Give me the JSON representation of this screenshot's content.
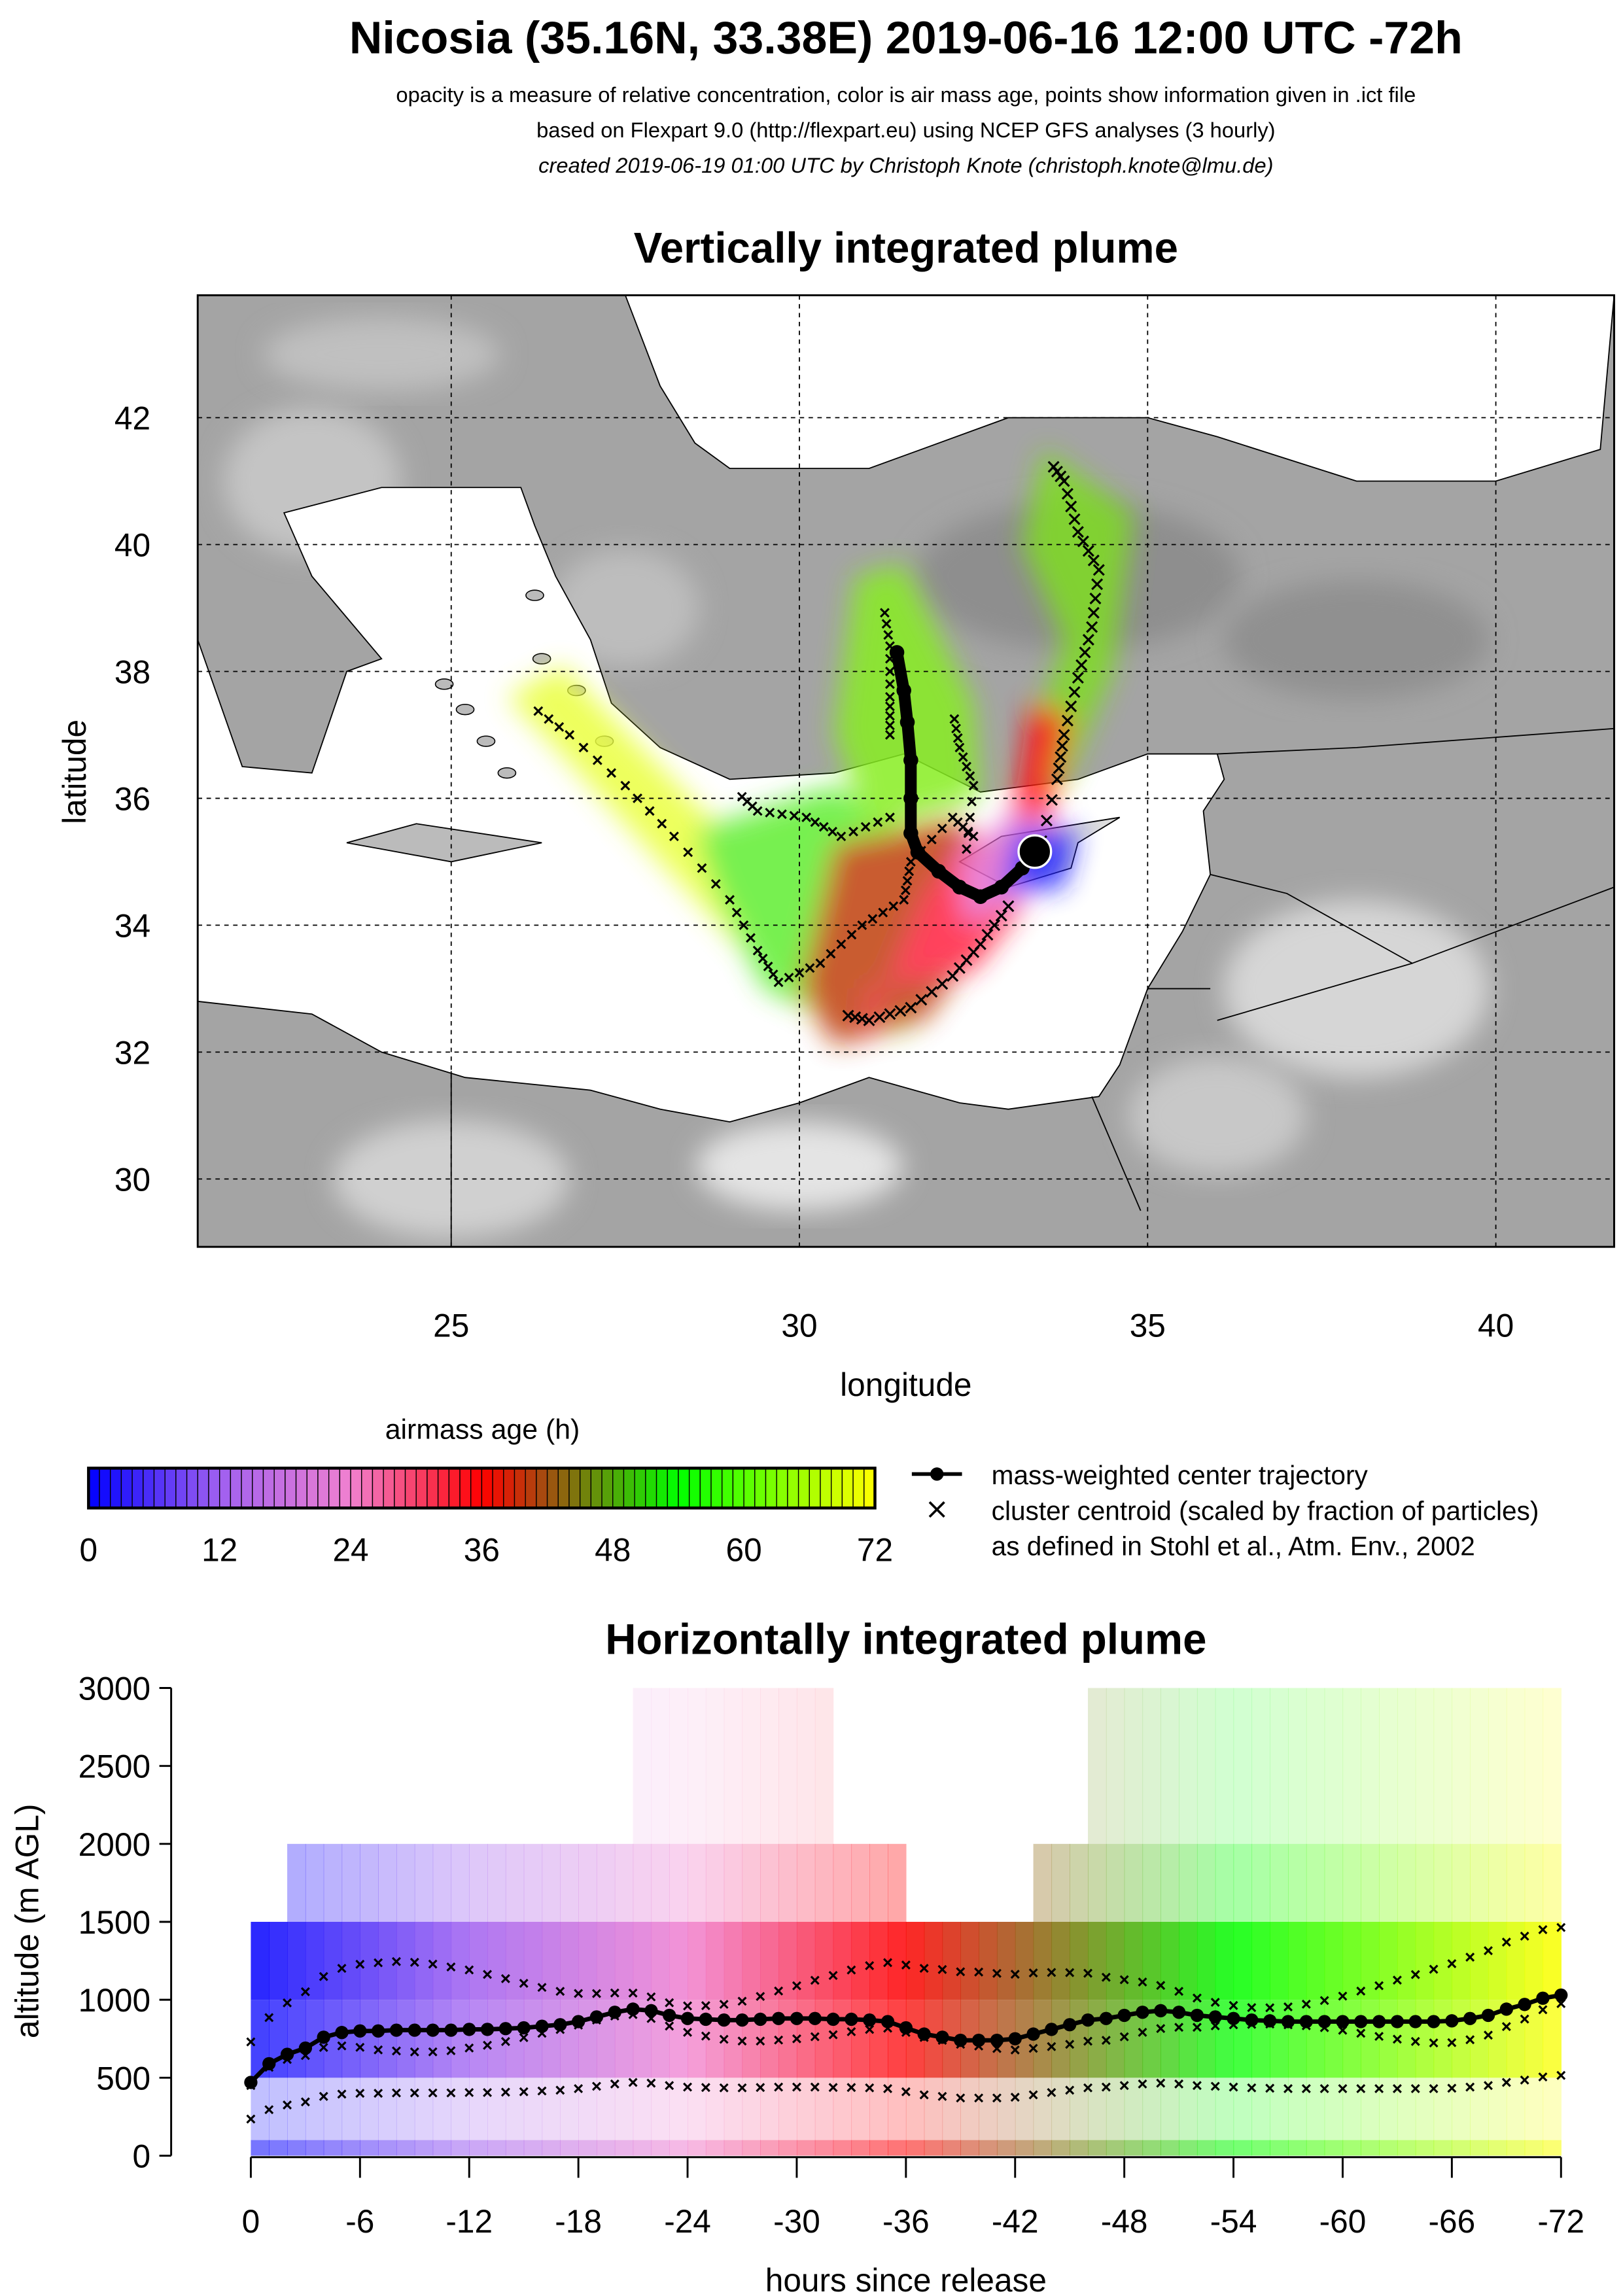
{
  "header": {
    "title": "Nicosia (35.16N, 33.38E) 2019-06-16 12:00 UTC -72h",
    "line1": "opacity is a measure of relative concentration, color is air mass age, points show information given in .ict file",
    "line2": "based on Flexpart 9.0 (http://flexpart.eu) using NCEP GFS analyses (3 hourly)",
    "line3": "created 2019-06-19 01:00 UTC by Christoph Knote (christoph.knote@lmu.de)"
  },
  "legend": {
    "colorbar_title": "airmass age (h)",
    "colorbar_ticks": [
      "0",
      "12",
      "24",
      "36",
      "48",
      "60",
      "72"
    ],
    "colorbar_stops": [
      {
        "age": 0,
        "color": "#0000ff"
      },
      {
        "age": 12,
        "color": "#a060f0"
      },
      {
        "age": 24,
        "color": "#f080d0"
      },
      {
        "age": 36,
        "color": "#ff0000"
      },
      {
        "age": 42,
        "color": "#a05010"
      },
      {
        "age": 54,
        "color": "#00ff00"
      },
      {
        "age": 72,
        "color": "#ffff00"
      }
    ],
    "trajectory_label": "mass-weighted center trajectory",
    "cluster_label": "cluster centroid (scaled by fraction of particles)",
    "reference_label": "as defined in Stohl et al., Atm. Env., 2002"
  },
  "chart_data": [
    {
      "type": "map",
      "title": "Vertically integrated plume",
      "xlabel": "longitude",
      "ylabel": "latitude",
      "xlim": [
        21.4,
        41.7
      ],
      "ylim": [
        28.9,
        43.9
      ],
      "xticks": [
        "25",
        "30",
        "35",
        "40"
      ],
      "yticks": [
        "30",
        "32",
        "34",
        "36",
        "38",
        "40",
        "42"
      ],
      "grid": true,
      "release_point": {
        "lat": 35.16,
        "lon": 33.38
      },
      "center_trajectory": [
        [
          33.38,
          35.16
        ],
        [
          33.2,
          34.9
        ],
        [
          32.9,
          34.6
        ],
        [
          32.6,
          34.45
        ],
        [
          32.3,
          34.6
        ],
        [
          32.0,
          34.85
        ],
        [
          31.7,
          35.15
        ],
        [
          31.6,
          35.45
        ],
        [
          31.6,
          36.0
        ],
        [
          31.6,
          36.6
        ],
        [
          31.55,
          37.2
        ],
        [
          31.5,
          37.7
        ],
        [
          31.4,
          38.3
        ]
      ],
      "cluster_centroids": [
        [
          [
            33.4,
            35.0
          ],
          [
            33.7,
            36.3
          ],
          [
            33.8,
            37.0
          ],
          [
            34.0,
            37.9
          ],
          [
            34.2,
            38.7
          ],
          [
            34.3,
            39.6
          ],
          [
            34.0,
            40.2
          ],
          [
            33.8,
            41.0
          ],
          [
            33.6,
            41.3
          ]
        ],
        [
          [
            33.0,
            34.3
          ],
          [
            32.6,
            33.7
          ],
          [
            32.2,
            33.2
          ],
          [
            31.6,
            32.7
          ],
          [
            31.0,
            32.5
          ],
          [
            30.6,
            32.6
          ]
        ],
        [
          [
            32.5,
            35.4
          ],
          [
            32.2,
            35.7
          ],
          [
            31.6,
            35.0
          ],
          [
            31.5,
            34.4
          ],
          [
            30.9,
            34.0
          ],
          [
            30.3,
            33.4
          ],
          [
            29.7,
            33.1
          ],
          [
            29.4,
            33.6
          ],
          [
            29.0,
            34.4
          ],
          [
            28.2,
            35.4
          ],
          [
            27.5,
            36.2
          ],
          [
            26.7,
            37.0
          ],
          [
            26.1,
            37.5
          ]
        ],
        [
          [
            31.3,
            35.7
          ],
          [
            30.6,
            35.4
          ],
          [
            30.1,
            35.7
          ],
          [
            29.4,
            35.8
          ],
          [
            29.1,
            36.1
          ]
        ],
        [
          [
            32.4,
            35.2
          ],
          [
            32.5,
            36.2
          ],
          [
            32.3,
            36.8
          ],
          [
            32.2,
            37.4
          ]
        ],
        [
          [
            31.3,
            37.0
          ],
          [
            31.3,
            37.6
          ],
          [
            31.3,
            38.4
          ],
          [
            31.2,
            39.1
          ]
        ]
      ]
    },
    {
      "type": "heatmap",
      "title": "Horizontally integrated plume",
      "xlabel": "hours since release",
      "ylabel": "altitude (m AGL)",
      "xlim": [
        0,
        -72
      ],
      "ylim": [
        0,
        3000
      ],
      "xticks": [
        "0",
        "-6",
        "-12",
        "-18",
        "-24",
        "-30",
        "-36",
        "-42",
        "-48",
        "-54",
        "-60",
        "-66",
        "-72"
      ],
      "yticks": [
        "0",
        "500",
        "1000",
        "1500",
        "2000",
        "2500",
        "3000"
      ],
      "altitude_levels": [
        0,
        100,
        500,
        1000,
        1500,
        2000,
        3000
      ],
      "center_trajectory_hours": [
        0,
        1,
        2,
        3,
        4,
        5,
        6,
        7,
        8,
        9,
        10,
        11,
        12,
        13,
        14,
        15,
        16,
        17,
        18,
        19,
        20,
        21,
        22,
        23,
        24,
        25,
        26,
        27,
        28,
        29,
        30,
        31,
        32,
        33,
        34,
        35,
        36,
        37,
        38,
        39,
        40,
        41,
        42,
        43,
        44,
        45,
        46,
        47,
        48,
        49,
        50,
        51,
        52,
        53,
        54,
        55,
        56,
        57,
        58,
        59,
        60,
        61,
        62,
        63,
        64,
        65,
        66,
        67,
        68,
        69,
        70,
        71,
        72
      ],
      "center_trajectory_altitude": [
        470,
        590,
        650,
        690,
        760,
        790,
        800,
        800,
        805,
        805,
        805,
        805,
        810,
        810,
        815,
        820,
        830,
        840,
        860,
        890,
        920,
        940,
        930,
        900,
        880,
        875,
        870,
        870,
        875,
        880,
        880,
        880,
        875,
        875,
        870,
        860,
        820,
        780,
        760,
        740,
        740,
        740,
        750,
        780,
        810,
        840,
        870,
        880,
        900,
        920,
        930,
        920,
        900,
        890,
        880,
        870,
        865,
        860,
        860,
        860,
        860,
        860,
        860,
        860,
        860,
        860,
        865,
        880,
        900,
        940,
        970,
        1010,
        1030
      ]
    }
  ]
}
